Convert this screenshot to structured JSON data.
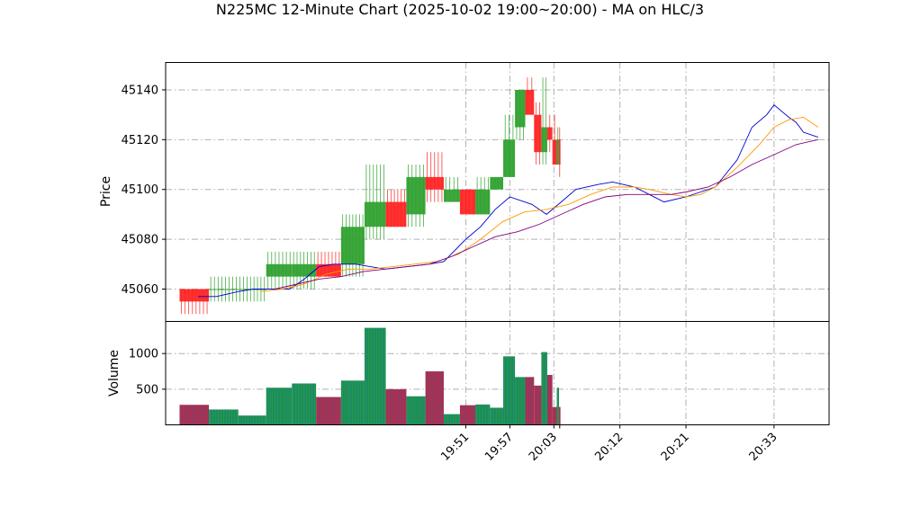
{
  "chart_data": {
    "type": "candlestick",
    "title": "N225MC 12-Minute Chart (2025-10-02 19:00~20:00) - MA on HLC/3",
    "price_panel": {
      "ylabel": "Price",
      "ylim": [
        45047,
        45151
      ],
      "yticks": [
        45060,
        45080,
        45100,
        45120,
        45140
      ],
      "grid": true
    },
    "volume_panel": {
      "ylabel": "Volume",
      "ylim": [
        0,
        1450
      ],
      "yticks": [
        500,
        1000
      ],
      "grid": true
    },
    "x_axis": {
      "range_minutes": [
        1150.1,
        1240.5
      ],
      "ticks": [
        {
          "label": "19:51",
          "minute": 1191
        },
        {
          "label": "19:57",
          "minute": 1197
        },
        {
          "label": "20:03",
          "minute": 1203
        },
        {
          "label": "20:12",
          "minute": 1212
        },
        {
          "label": "20:21",
          "minute": 1221
        },
        {
          "label": "20:33",
          "minute": 1233
        }
      ]
    },
    "bars": [
      {
        "t": 1152.0,
        "w": 4.0,
        "o": 45060,
        "h": 45060,
        "l": 45050,
        "c": 45055,
        "v": 280
      },
      {
        "t": 1156.0,
        "w": 4.0,
        "o": 45060,
        "h": 45065,
        "l": 45055,
        "c": 45060,
        "v": 215
      },
      {
        "t": 1160.0,
        "w": 3.8,
        "o": 45060,
        "h": 45065,
        "l": 45055,
        "c": 45060,
        "v": 130
      },
      {
        "t": 1163.8,
        "w": 3.5,
        "o": 45065,
        "h": 45075,
        "l": 45060,
        "c": 45070,
        "v": 520
      },
      {
        "t": 1167.3,
        "w": 3.3,
        "o": 45065,
        "h": 45075,
        "l": 45060,
        "c": 45070,
        "v": 580
      },
      {
        "t": 1170.6,
        "w": 3.4,
        "o": 45070,
        "h": 45075,
        "l": 45065,
        "c": 45065,
        "v": 390
      },
      {
        "t": 1174.0,
        "w": 3.2,
        "o": 45070,
        "h": 45090,
        "l": 45065,
        "c": 45085,
        "v": 620
      },
      {
        "t": 1177.2,
        "w": 2.9,
        "o": 45085,
        "h": 45110,
        "l": 45080,
        "c": 45095,
        "v": 1360
      },
      {
        "t": 1180.1,
        "w": 2.8,
        "o": 45095,
        "h": 45100,
        "l": 45085,
        "c": 45085,
        "v": 500
      },
      {
        "t": 1182.9,
        "w": 2.6,
        "o": 45090,
        "h": 45110,
        "l": 45085,
        "c": 45105,
        "v": 400
      },
      {
        "t": 1185.5,
        "w": 2.5,
        "o": 45105,
        "h": 45115,
        "l": 45095,
        "c": 45100,
        "v": 750
      },
      {
        "t": 1188.0,
        "w": 2.2,
        "o": 45095,
        "h": 45105,
        "l": 45095,
        "c": 45100,
        "v": 150
      },
      {
        "t": 1190.2,
        "w": 2.1,
        "o": 45100,
        "h": 45100,
        "l": 45090,
        "c": 45090,
        "v": 275
      },
      {
        "t": 1192.3,
        "w": 2.0,
        "o": 45090,
        "h": 45105,
        "l": 45090,
        "c": 45100,
        "v": 285
      },
      {
        "t": 1194.3,
        "w": 1.8,
        "o": 45100,
        "h": 45105,
        "l": 45100,
        "c": 45105,
        "v": 240
      },
      {
        "t": 1196.1,
        "w": 1.6,
        "o": 45105,
        "h": 45130,
        "l": 45105,
        "c": 45120,
        "v": 960
      },
      {
        "t": 1197.7,
        "w": 1.4,
        "o": 45125,
        "h": 45140,
        "l": 45120,
        "c": 45140,
        "v": 670
      },
      {
        "t": 1199.1,
        "w": 1.2,
        "o": 45140,
        "h": 45145,
        "l": 45130,
        "c": 45130,
        "v": 670
      },
      {
        "t": 1200.3,
        "w": 1.0,
        "o": 45130,
        "h": 45135,
        "l": 45110,
        "c": 45115,
        "v": 550
      },
      {
        "t": 1201.3,
        "w": 0.8,
        "o": 45115,
        "h": 45145,
        "l": 45110,
        "c": 45125,
        "v": 1020
      },
      {
        "t": 1202.1,
        "w": 0.7,
        "o": 45125,
        "h": 45130,
        "l": 45115,
        "c": 45120,
        "v": 700
      },
      {
        "t": 1202.8,
        "w": 0.6,
        "o": 45120,
        "h": 45130,
        "l": 45110,
        "c": 45110,
        "v": 250
      },
      {
        "t": 1203.4,
        "w": 0.3,
        "o": 45110,
        "h": 45125,
        "l": 45110,
        "c": 45120,
        "v": 520
      },
      {
        "t": 1203.7,
        "w": 0.2,
        "o": 45120,
        "h": 45125,
        "l": 45105,
        "c": 45110,
        "v": 250
      }
    ],
    "series": [
      {
        "color": "#0000cc",
        "points": [
          [
            1154.5,
            45057
          ],
          [
            1157,
            45057
          ],
          [
            1160,
            45059
          ],
          [
            1162,
            45060
          ],
          [
            1164,
            45060
          ],
          [
            1167,
            45060
          ],
          [
            1169,
            45064
          ],
          [
            1171,
            45069
          ],
          [
            1173,
            45070
          ],
          [
            1176,
            45070
          ],
          [
            1178,
            45069
          ],
          [
            1180,
            45068
          ],
          [
            1183,
            45069
          ],
          [
            1186,
            45070
          ],
          [
            1188,
            45071
          ],
          [
            1191,
            45080
          ],
          [
            1193,
            45085
          ],
          [
            1195,
            45092
          ],
          [
            1197,
            45097
          ],
          [
            1200,
            45094
          ],
          [
            1202,
            45090
          ],
          [
            1204,
            45095
          ],
          [
            1206,
            45100
          ],
          [
            1209,
            45102
          ],
          [
            1211,
            45103
          ],
          [
            1214,
            45101
          ],
          [
            1216,
            45098
          ],
          [
            1218,
            45095
          ],
          [
            1221,
            45097
          ],
          [
            1223,
            45099
          ],
          [
            1225,
            45101
          ],
          [
            1228,
            45112
          ],
          [
            1230,
            45125
          ],
          [
            1232,
            45130
          ],
          [
            1233,
            45134
          ],
          [
            1235,
            45129
          ],
          [
            1236,
            45127
          ],
          [
            1237,
            45123
          ],
          [
            1239,
            45121
          ]
        ]
      },
      {
        "color": "#ff9900",
        "points": [
          [
            1163,
            45059
          ],
          [
            1166,
            45060
          ],
          [
            1169,
            45062
          ],
          [
            1172,
            45066
          ],
          [
            1175,
            45068
          ],
          [
            1178,
            45068
          ],
          [
            1181,
            45069
          ],
          [
            1184,
            45070
          ],
          [
            1187,
            45071
          ],
          [
            1190,
            45074
          ],
          [
            1193,
            45080
          ],
          [
            1196,
            45087
          ],
          [
            1199,
            45091
          ],
          [
            1202,
            45092
          ],
          [
            1205,
            45094
          ],
          [
            1208,
            45098
          ],
          [
            1211,
            45101
          ],
          [
            1214,
            45101
          ],
          [
            1216,
            45100
          ],
          [
            1219,
            45098
          ],
          [
            1221,
            45097
          ],
          [
            1223,
            45098
          ],
          [
            1225,
            45101
          ],
          [
            1228,
            45109
          ],
          [
            1231,
            45118
          ],
          [
            1233,
            45125
          ],
          [
            1235,
            45128
          ],
          [
            1237,
            45129
          ],
          [
            1239,
            45125
          ]
        ]
      },
      {
        "color": "#800080",
        "points": [
          [
            1165,
            45060
          ],
          [
            1168,
            45062
          ],
          [
            1171,
            45064
          ],
          [
            1174,
            45065
          ],
          [
            1177,
            45067
          ],
          [
            1180,
            45068
          ],
          [
            1183,
            45069
          ],
          [
            1186,
            45070
          ],
          [
            1189,
            45073
          ],
          [
            1192,
            45077
          ],
          [
            1195,
            45081
          ],
          [
            1198,
            45083
          ],
          [
            1201,
            45086
          ],
          [
            1204,
            45090
          ],
          [
            1207,
            45094
          ],
          [
            1210,
            45097
          ],
          [
            1213,
            45098
          ],
          [
            1216,
            45098
          ],
          [
            1219,
            45098
          ],
          [
            1221,
            45099
          ],
          [
            1224,
            45101
          ],
          [
            1227,
            45105
          ],
          [
            1230,
            45110
          ],
          [
            1233,
            45114
          ],
          [
            1236,
            45118
          ],
          [
            1239,
            45120
          ]
        ]
      }
    ]
  }
}
